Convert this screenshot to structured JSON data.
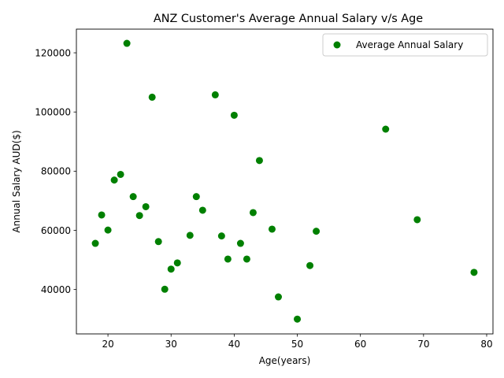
{
  "chart_data": {
    "type": "scatter",
    "title": "ANZ Customer's Average Annual Salary v/s Age",
    "xlabel": "Age(years)",
    "ylabel": "Annual Salary AUD($)",
    "xlim": [
      14.999,
      81
    ],
    "ylim": [
      25000,
      128000
    ],
    "xticks": [
      20,
      30,
      40,
      50,
      60,
      70,
      80
    ],
    "yticks": [
      40000,
      60000,
      80000,
      100000,
      120000
    ],
    "grid": false,
    "legend_position": "top-right",
    "series": [
      {
        "name": "Average Annual Salary",
        "color": "#008000",
        "points": [
          {
            "x": 18,
            "y": 55600
          },
          {
            "x": 19,
            "y": 65200
          },
          {
            "x": 20,
            "y": 60100
          },
          {
            "x": 21,
            "y": 77000
          },
          {
            "x": 22,
            "y": 78900
          },
          {
            "x": 23,
            "y": 123200
          },
          {
            "x": 24,
            "y": 71400
          },
          {
            "x": 25,
            "y": 65000
          },
          {
            "x": 26,
            "y": 68000
          },
          {
            "x": 27,
            "y": 105000
          },
          {
            "x": 28,
            "y": 56200
          },
          {
            "x": 29,
            "y": 40100
          },
          {
            "x": 30,
            "y": 46900
          },
          {
            "x": 31,
            "y": 49000
          },
          {
            "x": 33,
            "y": 58300
          },
          {
            "x": 34,
            "y": 71400
          },
          {
            "x": 35,
            "y": 66800
          },
          {
            "x": 37,
            "y": 105800
          },
          {
            "x": 38,
            "y": 58100
          },
          {
            "x": 39,
            "y": 50300
          },
          {
            "x": 40,
            "y": 98900
          },
          {
            "x": 41,
            "y": 55600
          },
          {
            "x": 42,
            "y": 50300
          },
          {
            "x": 43,
            "y": 66000
          },
          {
            "x": 44,
            "y": 83600
          },
          {
            "x": 46,
            "y": 60400
          },
          {
            "x": 47,
            "y": 37500
          },
          {
            "x": 50,
            "y": 30000
          },
          {
            "x": 52,
            "y": 48100
          },
          {
            "x": 53,
            "y": 59700
          },
          {
            "x": 64,
            "y": 94200
          },
          {
            "x": 69,
            "y": 63600
          },
          {
            "x": 78,
            "y": 45800
          }
        ]
      }
    ]
  }
}
